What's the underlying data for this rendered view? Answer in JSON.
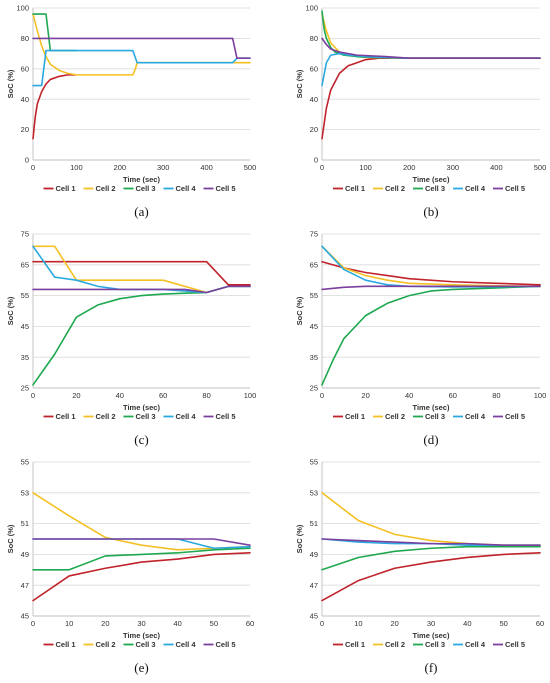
{
  "colors": {
    "Cell 1": "#c0232b",
    "Cell 2": "#f5c023",
    "Cell 3": "#1fa84f",
    "Cell 4": "#2aa9e0",
    "Cell 5": "#7b3f9e"
  },
  "chart_data": [
    {
      "panel": "(a)",
      "type": "line",
      "xlabel": "Time (sec)",
      "ylabel": "SoC (%)",
      "xlim": [
        0,
        500
      ],
      "ylim": [
        0,
        100
      ],
      "xticks": [
        0,
        100,
        200,
        300,
        400,
        500
      ],
      "yticks": [
        0,
        20,
        40,
        60,
        80,
        100
      ],
      "grid": "horizontal",
      "legend": "bottom",
      "series": [
        {
          "name": "Cell 1",
          "x": [
            0,
            5,
            10,
            20,
            30,
            40,
            60,
            80,
            100
          ],
          "y": [
            14,
            28,
            37,
            45,
            50,
            53,
            55,
            56,
            56
          ]
        },
        {
          "name": "Cell 2",
          "x": [
            0,
            10,
            20,
            30,
            40,
            60,
            80,
            100,
            150,
            200,
            230,
            236,
            240,
            500
          ],
          "y": [
            96,
            85,
            75,
            68,
            63,
            59,
            57,
            56,
            56,
            56,
            56,
            60,
            64,
            64
          ]
        },
        {
          "name": "Cell 3",
          "x": [
            0,
            30,
            40,
            100
          ],
          "y": [
            96,
            96,
            72,
            72
          ]
        },
        {
          "name": "Cell 4",
          "x": [
            0,
            20,
            30,
            100,
            230,
            240,
            460,
            470,
            500
          ],
          "y": [
            49,
            49,
            72,
            72,
            72,
            64,
            64,
            67,
            67
          ]
        },
        {
          "name": "Cell 5",
          "x": [
            0,
            460,
            470,
            500
          ],
          "y": [
            80,
            80,
            67,
            67
          ]
        }
      ]
    },
    {
      "panel": "(b)",
      "type": "line",
      "xlabel": "Time (sec)",
      "ylabel": "SoC (%)",
      "xlim": [
        0,
        500
      ],
      "ylim": [
        0,
        100
      ],
      "xticks": [
        0,
        100,
        200,
        300,
        400,
        500
      ],
      "yticks": [
        0,
        20,
        40,
        60,
        80,
        100
      ],
      "grid": "horizontal",
      "legend": "bottom",
      "series": [
        {
          "name": "Cell 1",
          "x": [
            0,
            10,
            20,
            40,
            60,
            80,
            100,
            130,
            160,
            200,
            500
          ],
          "y": [
            14,
            34,
            46,
            57,
            62,
            64,
            66,
            67,
            67,
            67,
            67
          ]
        },
        {
          "name": "Cell 2",
          "x": [
            0,
            10,
            20,
            40,
            60,
            100,
            200,
            500
          ],
          "y": [
            96,
            85,
            77,
            71,
            69,
            67.5,
            67,
            67
          ]
        },
        {
          "name": "Cell 3",
          "x": [
            0,
            5,
            10,
            20,
            30,
            50,
            80,
            120,
            200,
            500
          ],
          "y": [
            98,
            86,
            80,
            74,
            71,
            69,
            68,
            67.5,
            67,
            67
          ]
        },
        {
          "name": "Cell 4",
          "x": [
            0,
            10,
            20,
            40,
            60,
            100,
            200,
            500
          ],
          "y": [
            49,
            64,
            69,
            70,
            69,
            68,
            67,
            67
          ]
        },
        {
          "name": "Cell 5",
          "x": [
            0,
            10,
            20,
            40,
            80,
            150,
            200,
            500
          ],
          "y": [
            80,
            76,
            73,
            71,
            69,
            68,
            67,
            67
          ]
        }
      ]
    },
    {
      "panel": "(c)",
      "type": "line",
      "xlabel": "Time (sec)",
      "ylabel": "SoC (%)",
      "xlim": [
        0,
        100
      ],
      "ylim": [
        25,
        75
      ],
      "xticks": [
        0,
        20,
        40,
        60,
        80,
        100
      ],
      "yticks": [
        25,
        35,
        45,
        55,
        65,
        75
      ],
      "grid": "horizontal",
      "legend": "bottom",
      "series": [
        {
          "name": "Cell 1",
          "x": [
            0,
            10,
            20,
            40,
            60,
            80,
            90,
            100
          ],
          "y": [
            66,
            66,
            66,
            66,
            66,
            66,
            58.5,
            58.5
          ]
        },
        {
          "name": "Cell 2",
          "x": [
            0,
            10,
            20,
            30,
            40,
            60,
            80,
            90,
            100
          ],
          "y": [
            71,
            71,
            60,
            60,
            60,
            60,
            56,
            58,
            58
          ]
        },
        {
          "name": "Cell 3",
          "x": [
            0,
            10,
            20,
            30,
            40,
            50,
            60,
            70,
            80,
            90,
            100
          ],
          "y": [
            26,
            36,
            48,
            52,
            54,
            55,
            55.5,
            55.8,
            56,
            58,
            58
          ]
        },
        {
          "name": "Cell 4",
          "x": [
            0,
            10,
            20,
            30,
            40,
            60,
            80,
            90,
            100
          ],
          "y": [
            71,
            61,
            60,
            58,
            57,
            57,
            56,
            58,
            58
          ]
        },
        {
          "name": "Cell 5",
          "x": [
            0,
            20,
            40,
            60,
            70,
            80,
            90,
            100
          ],
          "y": [
            57,
            57,
            57,
            57,
            57,
            56,
            58,
            58
          ]
        }
      ]
    },
    {
      "panel": "(d)",
      "type": "line",
      "xlabel": "Time (sec)",
      "ylabel": "SoC (%)",
      "xlim": [
        0,
        100
      ],
      "ylim": [
        25,
        75
      ],
      "xticks": [
        0,
        20,
        40,
        60,
        80,
        100
      ],
      "yticks": [
        25,
        35,
        45,
        55,
        65,
        75
      ],
      "grid": "horizontal",
      "legend": "bottom",
      "series": [
        {
          "name": "Cell 1",
          "x": [
            0,
            10,
            20,
            30,
            40,
            60,
            80,
            100
          ],
          "y": [
            66,
            64,
            62.5,
            61.5,
            60.5,
            59.5,
            59,
            58.5
          ]
        },
        {
          "name": "Cell 2",
          "x": [
            0,
            10,
            20,
            30,
            40,
            60,
            80,
            100
          ],
          "y": [
            71,
            64,
            61.5,
            60,
            59,
            58.5,
            58.2,
            58
          ]
        },
        {
          "name": "Cell 3",
          "x": [
            0,
            5,
            10,
            20,
            30,
            40,
            50,
            60,
            80,
            100
          ],
          "y": [
            26,
            34,
            41,
            48.5,
            52.5,
            55,
            56.5,
            57,
            57.5,
            58
          ]
        },
        {
          "name": "Cell 4",
          "x": [
            0,
            10,
            20,
            30,
            40,
            60,
            80,
            100
          ],
          "y": [
            71,
            63.5,
            60,
            58.5,
            58,
            57.8,
            57.9,
            58
          ]
        },
        {
          "name": "Cell 5",
          "x": [
            0,
            10,
            20,
            40,
            60,
            80,
            100
          ],
          "y": [
            57,
            57.7,
            58,
            58,
            58,
            58,
            58
          ]
        }
      ]
    },
    {
      "panel": "(e)",
      "type": "line",
      "xlabel": "Time (sec)",
      "ylabel": "SoC (%)",
      "xlim": [
        0,
        60
      ],
      "ylim": [
        45,
        55
      ],
      "xticks": [
        0,
        10,
        20,
        30,
        40,
        50,
        60
      ],
      "yticks": [
        45,
        47,
        49,
        51,
        53,
        55
      ],
      "grid": "horizontal",
      "legend": "bottom",
      "series": [
        {
          "name": "Cell 1",
          "x": [
            0,
            10,
            20,
            30,
            40,
            50,
            60
          ],
          "y": [
            46,
            47.6,
            48.1,
            48.5,
            48.7,
            49,
            49.1
          ]
        },
        {
          "name": "Cell 2",
          "x": [
            0,
            10,
            20,
            30,
            40,
            50,
            60
          ],
          "y": [
            53,
            51.5,
            50.1,
            49.6,
            49.3,
            49.4,
            49.5
          ]
        },
        {
          "name": "Cell 3",
          "x": [
            0,
            10,
            20,
            30,
            40,
            50,
            60
          ],
          "y": [
            48,
            48,
            48.9,
            49,
            49.1,
            49.3,
            49.4
          ]
        },
        {
          "name": "Cell 4",
          "x": [
            0,
            10,
            20,
            30,
            40,
            50,
            60
          ],
          "y": [
            50,
            50,
            50,
            50,
            50,
            49.4,
            49.5
          ]
        },
        {
          "name": "Cell 5",
          "x": [
            0,
            10,
            20,
            30,
            40,
            50,
            60
          ],
          "y": [
            50,
            50,
            50,
            50,
            50,
            50,
            49.6
          ]
        }
      ]
    },
    {
      "panel": "(f)",
      "type": "line",
      "xlabel": "Time (sec)",
      "ylabel": "SoC (%)",
      "xlim": [
        0,
        60
      ],
      "ylim": [
        45,
        55
      ],
      "xticks": [
        0,
        10,
        20,
        30,
        40,
        50,
        60
      ],
      "yticks": [
        45,
        47,
        49,
        51,
        53,
        55
      ],
      "grid": "horizontal",
      "legend": "bottom",
      "series": [
        {
          "name": "Cell 1",
          "x": [
            0,
            10,
            20,
            30,
            40,
            50,
            60
          ],
          "y": [
            46,
            47.3,
            48.1,
            48.5,
            48.8,
            49,
            49.1
          ]
        },
        {
          "name": "Cell 2",
          "x": [
            0,
            10,
            20,
            30,
            40,
            50,
            60
          ],
          "y": [
            53,
            51.2,
            50.3,
            49.9,
            49.7,
            49.6,
            49.6
          ]
        },
        {
          "name": "Cell 3",
          "x": [
            0,
            10,
            20,
            30,
            40,
            50,
            60
          ],
          "y": [
            48,
            48.8,
            49.2,
            49.4,
            49.5,
            49.5,
            49.5
          ]
        },
        {
          "name": "Cell 4",
          "x": [
            0,
            10,
            20,
            30,
            40,
            50,
            60
          ],
          "y": [
            50,
            49.8,
            49.7,
            49.7,
            49.6,
            49.6,
            49.6
          ]
        },
        {
          "name": "Cell 5",
          "x": [
            0,
            10,
            20,
            30,
            40,
            50,
            60
          ],
          "y": [
            50,
            49.9,
            49.8,
            49.7,
            49.7,
            49.6,
            49.6
          ]
        }
      ]
    }
  ]
}
